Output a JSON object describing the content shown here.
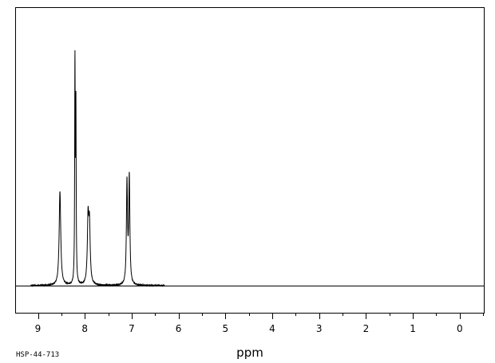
{
  "chart_data": {
    "type": "line",
    "title": "",
    "xlabel": "ppm",
    "ylabel": "",
    "xlim": [
      9.45,
      -0.5
    ],
    "x_reversed": true,
    "ylim": [
      0,
      1
    ],
    "grid": false,
    "x_ticks": [
      "9",
      "8",
      "7",
      "6",
      "5",
      "4",
      "3",
      "2",
      "1",
      "0"
    ],
    "peaks": [
      {
        "shift": 8.53,
        "height": 0.37,
        "width": 0.02
      },
      {
        "shift": 8.21,
        "height": 0.85,
        "width": 0.007
      },
      {
        "shift": 8.19,
        "height": 0.68,
        "width": 0.007
      },
      {
        "shift": 7.93,
        "height": 0.25,
        "width": 0.018
      },
      {
        "shift": 7.9,
        "height": 0.22,
        "width": 0.018
      },
      {
        "shift": 7.1,
        "height": 0.4,
        "width": 0.014
      },
      {
        "shift": 7.05,
        "height": 0.42,
        "width": 0.014
      }
    ],
    "baseline_range": [
      9.15,
      6.3
    ]
  },
  "annotation": {
    "code": "HSP-44-713"
  }
}
